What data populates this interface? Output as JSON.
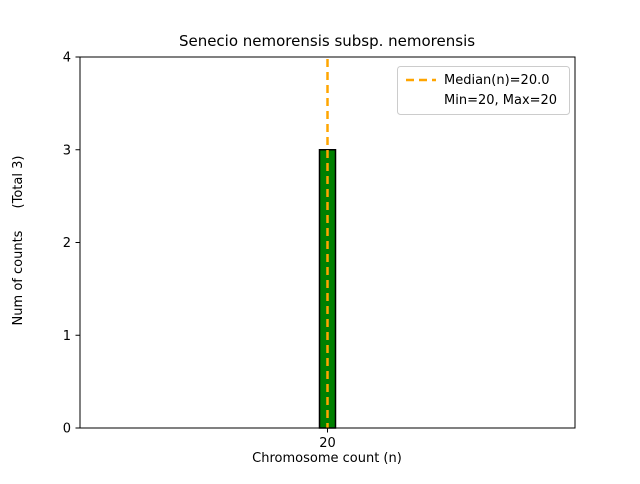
{
  "chart_data": {
    "type": "bar",
    "title": "Senecio nemorensis subsp. nemorensis",
    "xlabel": "Chromosome count (n)",
    "ylabel": "Num of counts    (Total 3)",
    "ylabel_main": "Num of counts",
    "ylabel_suffix": "(Total 3)",
    "categories": [
      "20"
    ],
    "values": [
      3
    ],
    "total": 3,
    "median": 20.0,
    "min": 20,
    "max": 20,
    "ylim": [
      0,
      4
    ],
    "yticks": [
      0,
      1,
      2,
      3,
      4
    ],
    "grid": false,
    "bar_color": "#008000",
    "bar_edge_color": "#000000",
    "median_line_color": "#FFA500",
    "legend": {
      "position": "upper right",
      "median_label": "Median(n)=20.0",
      "minmax_label": "Min=20, Max=20"
    }
  }
}
